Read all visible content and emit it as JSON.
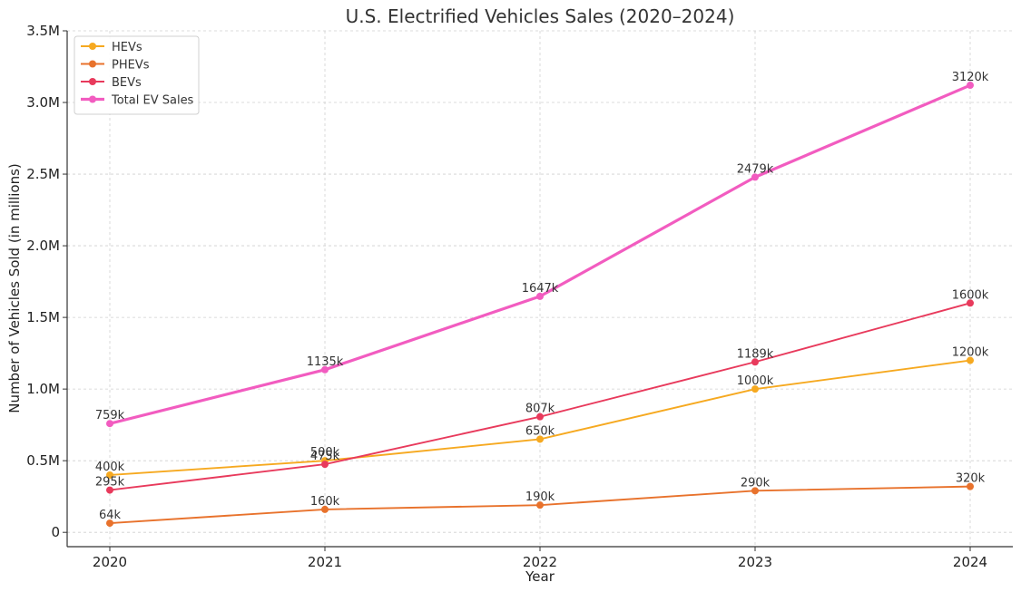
{
  "chart_data": {
    "type": "line",
    "title": "U.S. Electrified Vehicles Sales (2020–2024)",
    "xlabel": "Year",
    "ylabel": "Number of Vehicles Sold (in millions)",
    "categories": [
      "2020",
      "2021",
      "2022",
      "2023",
      "2024"
    ],
    "ylim": [
      -0.1,
      3.5
    ],
    "y_ticks": [
      {
        "value": 0,
        "label": "0"
      },
      {
        "value": 0.5,
        "label": "0.5M"
      },
      {
        "value": 1.0,
        "label": "1.0M"
      },
      {
        "value": 1.5,
        "label": "1.5M"
      },
      {
        "value": 2.0,
        "label": "2.0M"
      },
      {
        "value": 2.5,
        "label": "2.5M"
      },
      {
        "value": 3.0,
        "label": "3.0M"
      },
      {
        "value": 3.5,
        "label": "3.5M"
      }
    ],
    "grid": true,
    "legend_position": "top-left",
    "series": [
      {
        "name": "HEVs",
        "color": "#f6a920",
        "values": [
          0.4,
          0.5,
          0.65,
          1.0,
          1.2
        ],
        "labels": [
          "400k",
          "500k",
          "650k",
          "1000k",
          "1200k"
        ]
      },
      {
        "name": "PHEVs",
        "color": "#e8722c",
        "values": [
          0.064,
          0.16,
          0.19,
          0.29,
          0.32
        ],
        "labels": [
          "64k",
          "160k",
          "190k",
          "290k",
          "320k"
        ]
      },
      {
        "name": "BEVs",
        "color": "#e83a5c",
        "values": [
          0.295,
          0.475,
          0.807,
          1.189,
          1.6
        ],
        "labels": [
          "295k",
          "475k",
          "807k",
          "1189k",
          "1600k"
        ]
      },
      {
        "name": "Total EV Sales",
        "color": "#f25cc0",
        "values": [
          0.759,
          1.135,
          1.647,
          2.479,
          3.12
        ],
        "labels": [
          "759k",
          "1135k",
          "1647k",
          "2479k",
          "3120k"
        ]
      }
    ]
  }
}
